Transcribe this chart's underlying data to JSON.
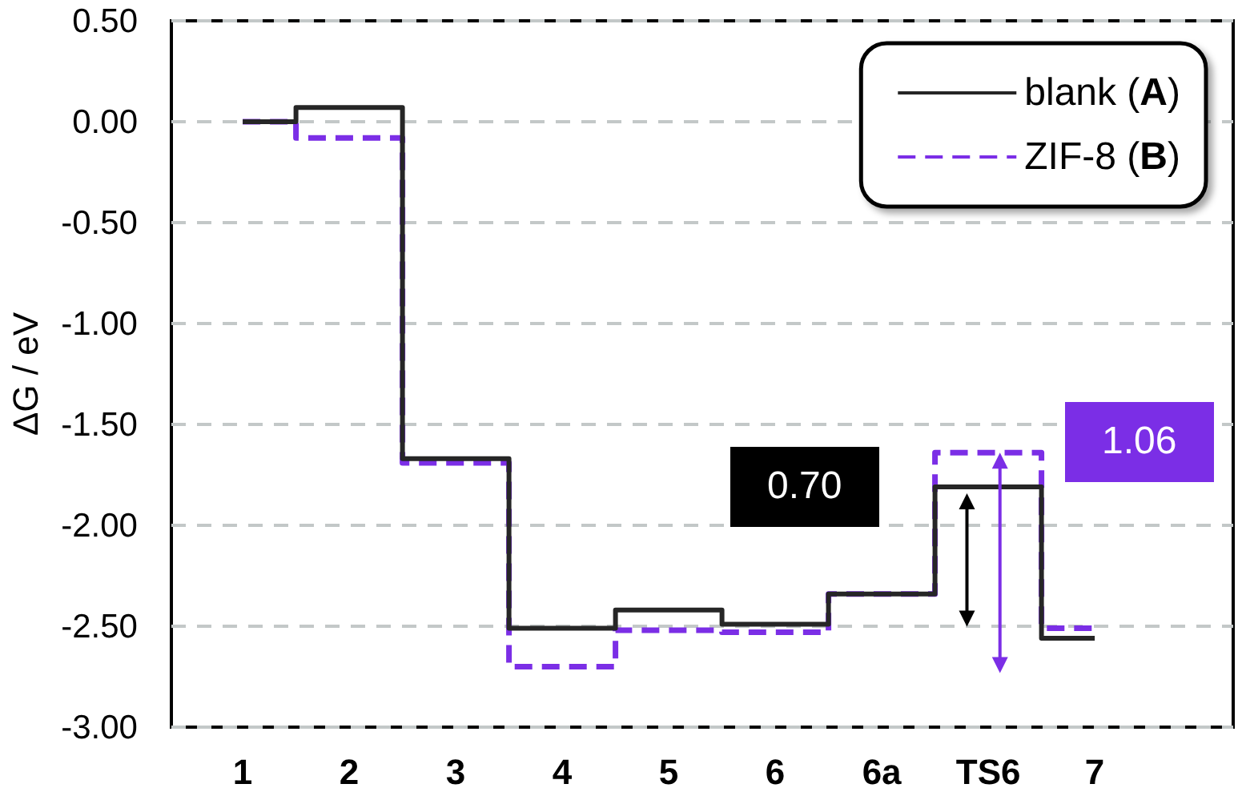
{
  "chart_data": {
    "type": "step",
    "ylabel": "ΔG / eV",
    "categories": [
      "1",
      "2",
      "3",
      "4",
      "5",
      "6",
      "6a",
      "TS6",
      "7"
    ],
    "series": [
      {
        "name": "blank (A)",
        "color": "#262626",
        "line_style": "solid",
        "values": [
          0.0,
          0.07,
          -1.67,
          -2.51,
          -2.42,
          -2.49,
          -2.34,
          -1.81,
          -2.56
        ]
      },
      {
        "name": "ZIF-8 (B)",
        "color": "#7b2ee6",
        "line_style": "dashed",
        "values": [
          0.0,
          -0.08,
          -1.69,
          -2.7,
          -2.52,
          -2.53,
          -2.34,
          -1.64,
          -2.51
        ]
      }
    ],
    "ylim": [
      -3.0,
      0.5
    ],
    "yticks": [
      {
        "value": -3.0,
        "label": "-3.00"
      },
      {
        "value": -2.5,
        "label": "-2.50"
      },
      {
        "value": -2.0,
        "label": "-2.00"
      },
      {
        "value": -1.5,
        "label": "-1.50"
      },
      {
        "value": -1.0,
        "label": "-1.00"
      },
      {
        "value": -0.5,
        "label": "-0.50"
      },
      {
        "value": 0,
        "label": "0.00"
      },
      {
        "value": 0.5,
        "label": "0.50"
      }
    ],
    "annotations": [
      "0.70",
      "1.06"
    ],
    "grid": "y",
    "legend": "top right",
    "marker": "none"
  }
}
